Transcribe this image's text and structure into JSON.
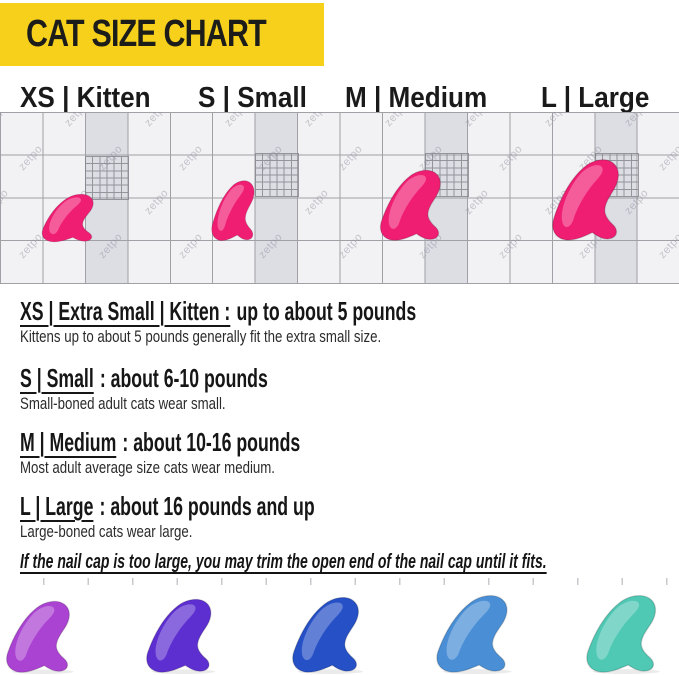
{
  "banner": {
    "title": "CAT SIZE CHART",
    "bg_color": "#F6D01B",
    "text_color": "#1C1C1A"
  },
  "size_headers": [
    {
      "id": "xs",
      "label": "XS | Kitten"
    },
    {
      "id": "s",
      "label": "S | Small"
    },
    {
      "id": "m",
      "label": "M | Medium"
    },
    {
      "id": "l",
      "label": "L | Large"
    }
  ],
  "grid": {
    "watermark": "zetpo",
    "cap_color": "#F01E73",
    "cap_sizes": [
      "XS",
      "S",
      "M",
      "L"
    ]
  },
  "sections": [
    {
      "title_underlined": "XS | Extra Small | Kitten :",
      "title_rest": "up to about 5 pounds",
      "description": "Kittens up to about 5 pounds generally fit the extra small size."
    },
    {
      "title_underlined": "S | Small",
      "title_rest": ": about 6-10 pounds",
      "description": "Small-boned adult cats wear small."
    },
    {
      "title_underlined": "M | Medium",
      "title_rest": ": about 10-16 pounds",
      "description": "Most adult average size cats wear medium."
    },
    {
      "title_underlined": "L | Large",
      "title_rest": ": about 16 pounds and up",
      "description": "Large-boned cats wear large."
    }
  ],
  "note": "If the nail cap is too large, you may trim the open end of the nail cap until it fits.",
  "bottom_caps": [
    {
      "name": "purple-orchid",
      "color": "#AB43D2"
    },
    {
      "name": "violet",
      "color": "#5E2FD0"
    },
    {
      "name": "royal-blue",
      "color": "#2650C6"
    },
    {
      "name": "steel-blue",
      "color": "#4A8FD6"
    },
    {
      "name": "teal",
      "color": "#4FC8B4"
    }
  ]
}
